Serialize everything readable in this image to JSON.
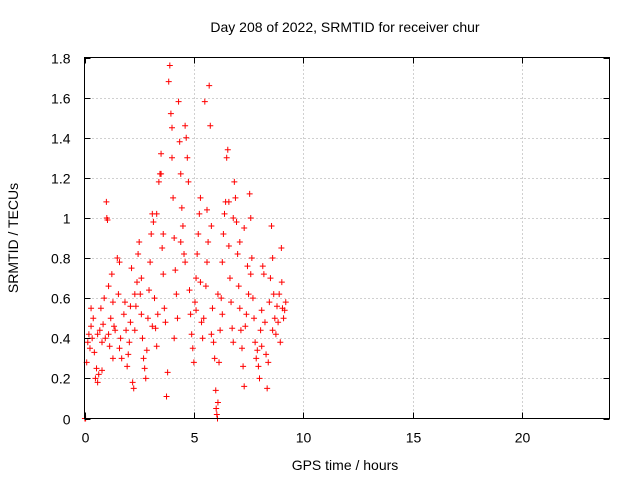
{
  "chart_data": {
    "type": "scatter",
    "title": "Day 208 of 2022, SRMTID for receiver chur",
    "xlabel": "GPS time / hours",
    "ylabel": "SRMTID / TECUs",
    "xlim": [
      0,
      24
    ],
    "ylim": [
      0,
      1.8
    ],
    "grid": true,
    "marker": "plus",
    "color": "#ff0000",
    "xticks": [
      0,
      5,
      10,
      15,
      20
    ],
    "xtick_labels": [
      "0",
      "5",
      "10",
      "15",
      "20"
    ],
    "yticks": [
      0,
      0.2,
      0.4,
      0.6,
      0.8,
      1.0,
      1.2,
      1.4,
      1.6,
      1.8
    ],
    "ytick_labels": [
      "0",
      "0.2",
      "0.4",
      "0.6",
      "0.8",
      "1",
      "1.2",
      "1.4",
      "1.6",
      "1.8"
    ],
    "series": [
      {
        "name": "SRMTID",
        "points": [
          [
            0.02,
            0.0
          ],
          [
            0.05,
            0.0
          ],
          [
            0.1,
            0.28
          ],
          [
            0.15,
            0.38
          ],
          [
            0.2,
            0.42
          ],
          [
            0.25,
            0.35
          ],
          [
            0.3,
            0.46
          ],
          [
            0.35,
            0.4
          ],
          [
            0.4,
            0.5
          ],
          [
            0.45,
            0.33
          ],
          [
            0.5,
            0.2
          ],
          [
            0.55,
            0.25
          ],
          [
            0.6,
            0.18
          ],
          [
            0.65,
            0.22
          ],
          [
            0.7,
            0.44
          ],
          [
            0.75,
            0.55
          ],
          [
            0.8,
            0.38
          ],
          [
            0.85,
            0.47
          ],
          [
            0.9,
            0.6
          ],
          [
            0.95,
            0.4
          ],
          [
            1.0,
            1.08
          ],
          [
            1.02,
            1.0
          ],
          [
            1.05,
            0.99
          ],
          [
            1.1,
            0.42
          ],
          [
            1.15,
            0.36
          ],
          [
            1.2,
            0.5
          ],
          [
            1.25,
            0.72
          ],
          [
            1.3,
            0.3
          ],
          [
            1.35,
            0.46
          ],
          [
            1.4,
            0.44
          ],
          [
            1.5,
            0.8
          ],
          [
            1.55,
            0.62
          ],
          [
            1.6,
            0.35
          ],
          [
            1.65,
            0.4
          ],
          [
            1.7,
            0.3
          ],
          [
            1.8,
            0.52
          ],
          [
            1.85,
            0.58
          ],
          [
            1.9,
            0.44
          ],
          [
            1.95,
            0.26
          ],
          [
            2.0,
            0.32
          ],
          [
            2.05,
            0.38
          ],
          [
            2.1,
            0.48
          ],
          [
            2.15,
            0.75
          ],
          [
            2.2,
            0.18
          ],
          [
            2.25,
            0.15
          ],
          [
            2.3,
            0.44
          ],
          [
            2.35,
            0.56
          ],
          [
            2.4,
            0.68
          ],
          [
            2.45,
            0.82
          ],
          [
            2.5,
            0.88
          ],
          [
            2.55,
            0.62
          ],
          [
            2.6,
            0.52
          ],
          [
            2.65,
            0.4
          ],
          [
            2.7,
            0.3
          ],
          [
            2.75,
            0.25
          ],
          [
            2.8,
            0.2
          ],
          [
            2.85,
            0.34
          ],
          [
            2.9,
            0.5
          ],
          [
            2.95,
            0.64
          ],
          [
            3.0,
            0.78
          ],
          [
            3.05,
            0.92
          ],
          [
            3.1,
            1.02
          ],
          [
            3.15,
            0.98
          ],
          [
            3.2,
            0.6
          ],
          [
            3.25,
            0.45
          ],
          [
            3.3,
            0.36
          ],
          [
            3.35,
            0.52
          ],
          [
            3.4,
            1.18
          ],
          [
            3.45,
            1.22
          ],
          [
            3.5,
            1.32
          ],
          [
            3.55,
            0.85
          ],
          [
            3.6,
            0.72
          ],
          [
            3.65,
            0.55
          ],
          [
            3.7,
            0.48
          ],
          [
            3.75,
            0.11
          ],
          [
            3.8,
            0.23
          ],
          [
            3.85,
            1.68
          ],
          [
            3.9,
            1.76
          ],
          [
            3.95,
            1.52
          ],
          [
            4.0,
            1.3
          ],
          [
            4.05,
            1.1
          ],
          [
            4.1,
            0.9
          ],
          [
            4.15,
            0.74
          ],
          [
            4.2,
            0.62
          ],
          [
            4.25,
            0.5
          ],
          [
            4.3,
            1.58
          ],
          [
            4.35,
            1.38
          ],
          [
            4.4,
            1.22
          ],
          [
            4.45,
            1.05
          ],
          [
            4.5,
            0.96
          ],
          [
            4.55,
            0.82
          ],
          [
            4.6,
            1.46
          ],
          [
            4.65,
            1.4
          ],
          [
            4.7,
            1.3
          ],
          [
            4.75,
            1.18
          ],
          [
            4.8,
            0.64
          ],
          [
            4.85,
            0.52
          ],
          [
            4.9,
            0.42
          ],
          [
            4.95,
            0.35
          ],
          [
            5.0,
            0.28
          ],
          [
            5.05,
            0.58
          ],
          [
            5.1,
            0.7
          ],
          [
            5.15,
            0.82
          ],
          [
            5.2,
            0.92
          ],
          [
            5.25,
            1.02
          ],
          [
            5.3,
            1.1
          ],
          [
            5.35,
            0.48
          ],
          [
            5.4,
            0.4
          ],
          [
            5.45,
            0.5
          ],
          [
            5.5,
            1.58
          ],
          [
            5.55,
            0.66
          ],
          [
            5.6,
            0.78
          ],
          [
            5.65,
            0.88
          ],
          [
            5.7,
            1.66
          ],
          [
            5.75,
            1.46
          ],
          [
            5.8,
            0.42
          ],
          [
            5.85,
            0.55
          ],
          [
            5.9,
            0.38
          ],
          [
            5.95,
            0.3
          ],
          [
            6.0,
            0.14
          ],
          [
            6.02,
            0.05
          ],
          [
            6.05,
            0.02
          ],
          [
            6.08,
            0.0
          ],
          [
            6.1,
            0.08
          ],
          [
            6.15,
            0.28
          ],
          [
            6.2,
            0.44
          ],
          [
            6.25,
            0.6
          ],
          [
            6.3,
            0.78
          ],
          [
            6.35,
            0.92
          ],
          [
            6.4,
            1.02
          ],
          [
            6.45,
            1.08
          ],
          [
            6.5,
            1.3
          ],
          [
            6.55,
            1.34
          ],
          [
            6.6,
            0.86
          ],
          [
            6.65,
            0.7
          ],
          [
            6.7,
            0.58
          ],
          [
            6.75,
            0.45
          ],
          [
            6.8,
            0.38
          ],
          [
            6.85,
            1.18
          ],
          [
            6.9,
            1.1
          ],
          [
            6.95,
            0.98
          ],
          [
            7.0,
            0.82
          ],
          [
            7.05,
            0.66
          ],
          [
            7.1,
            0.55
          ],
          [
            7.15,
            0.44
          ],
          [
            7.2,
            0.35
          ],
          [
            7.25,
            0.26
          ],
          [
            7.3,
            0.16
          ],
          [
            7.35,
            0.46
          ],
          [
            7.4,
            0.52
          ],
          [
            7.45,
            0.76
          ],
          [
            7.5,
            0.62
          ],
          [
            7.55,
            1.12
          ],
          [
            7.6,
            1.0
          ],
          [
            7.65,
            0.8
          ],
          [
            7.7,
            0.6
          ],
          [
            7.75,
            0.5
          ],
          [
            7.8,
            0.38
          ],
          [
            7.85,
            0.3
          ],
          [
            7.9,
            0.34
          ],
          [
            7.95,
            0.26
          ],
          [
            8.0,
            0.2
          ],
          [
            8.05,
            0.44
          ],
          [
            8.1,
            0.36
          ],
          [
            8.15,
            0.76
          ],
          [
            8.2,
            0.72
          ],
          [
            8.25,
            0.48
          ],
          [
            8.3,
            0.32
          ],
          [
            8.35,
            0.15
          ],
          [
            8.4,
            0.28
          ],
          [
            8.45,
            0.58
          ],
          [
            8.5,
            0.7
          ],
          [
            8.55,
            0.96
          ],
          [
            8.6,
            0.8
          ],
          [
            8.65,
            0.62
          ],
          [
            8.7,
            0.5
          ],
          [
            8.75,
            0.42
          ],
          [
            8.8,
            0.56
          ],
          [
            8.85,
            0.48
          ],
          [
            8.9,
            0.62
          ],
          [
            8.95,
            0.38
          ],
          [
            9.0,
            0.85
          ],
          [
            9.02,
            0.68
          ],
          [
            9.05,
            0.55
          ],
          [
            9.1,
            0.5
          ],
          [
            9.15,
            0.54
          ],
          [
            9.2,
            0.58
          ],
          [
            0.3,
            0.55
          ],
          [
            0.6,
            0.42
          ],
          [
            1.1,
            0.66
          ],
          [
            1.6,
            0.78
          ],
          [
            2.1,
            0.56
          ],
          [
            2.6,
            0.7
          ],
          [
            3.1,
            0.46
          ],
          [
            3.6,
            0.92
          ],
          [
            4.1,
            0.4
          ],
          [
            4.6,
            0.78
          ],
          [
            5.1,
            0.54
          ],
          [
            5.6,
            1.04
          ],
          [
            6.1,
            0.62
          ],
          [
            6.6,
            1.08
          ],
          [
            7.1,
            0.88
          ],
          [
            7.6,
            0.72
          ],
          [
            8.1,
            0.54
          ],
          [
            8.6,
            0.44
          ],
          [
            3.3,
            1.02
          ],
          [
            4.4,
            0.88
          ],
          [
            5.3,
            0.68
          ],
          [
            6.3,
            0.52
          ],
          [
            7.3,
            0.95
          ],
          [
            2.3,
            0.62
          ],
          [
            1.3,
            0.58
          ],
          [
            0.8,
            0.24
          ],
          [
            4.0,
            1.45
          ],
          [
            3.5,
            1.22
          ],
          [
            5.8,
            0.96
          ],
          [
            6.8,
            1.0
          ]
        ]
      }
    ]
  }
}
